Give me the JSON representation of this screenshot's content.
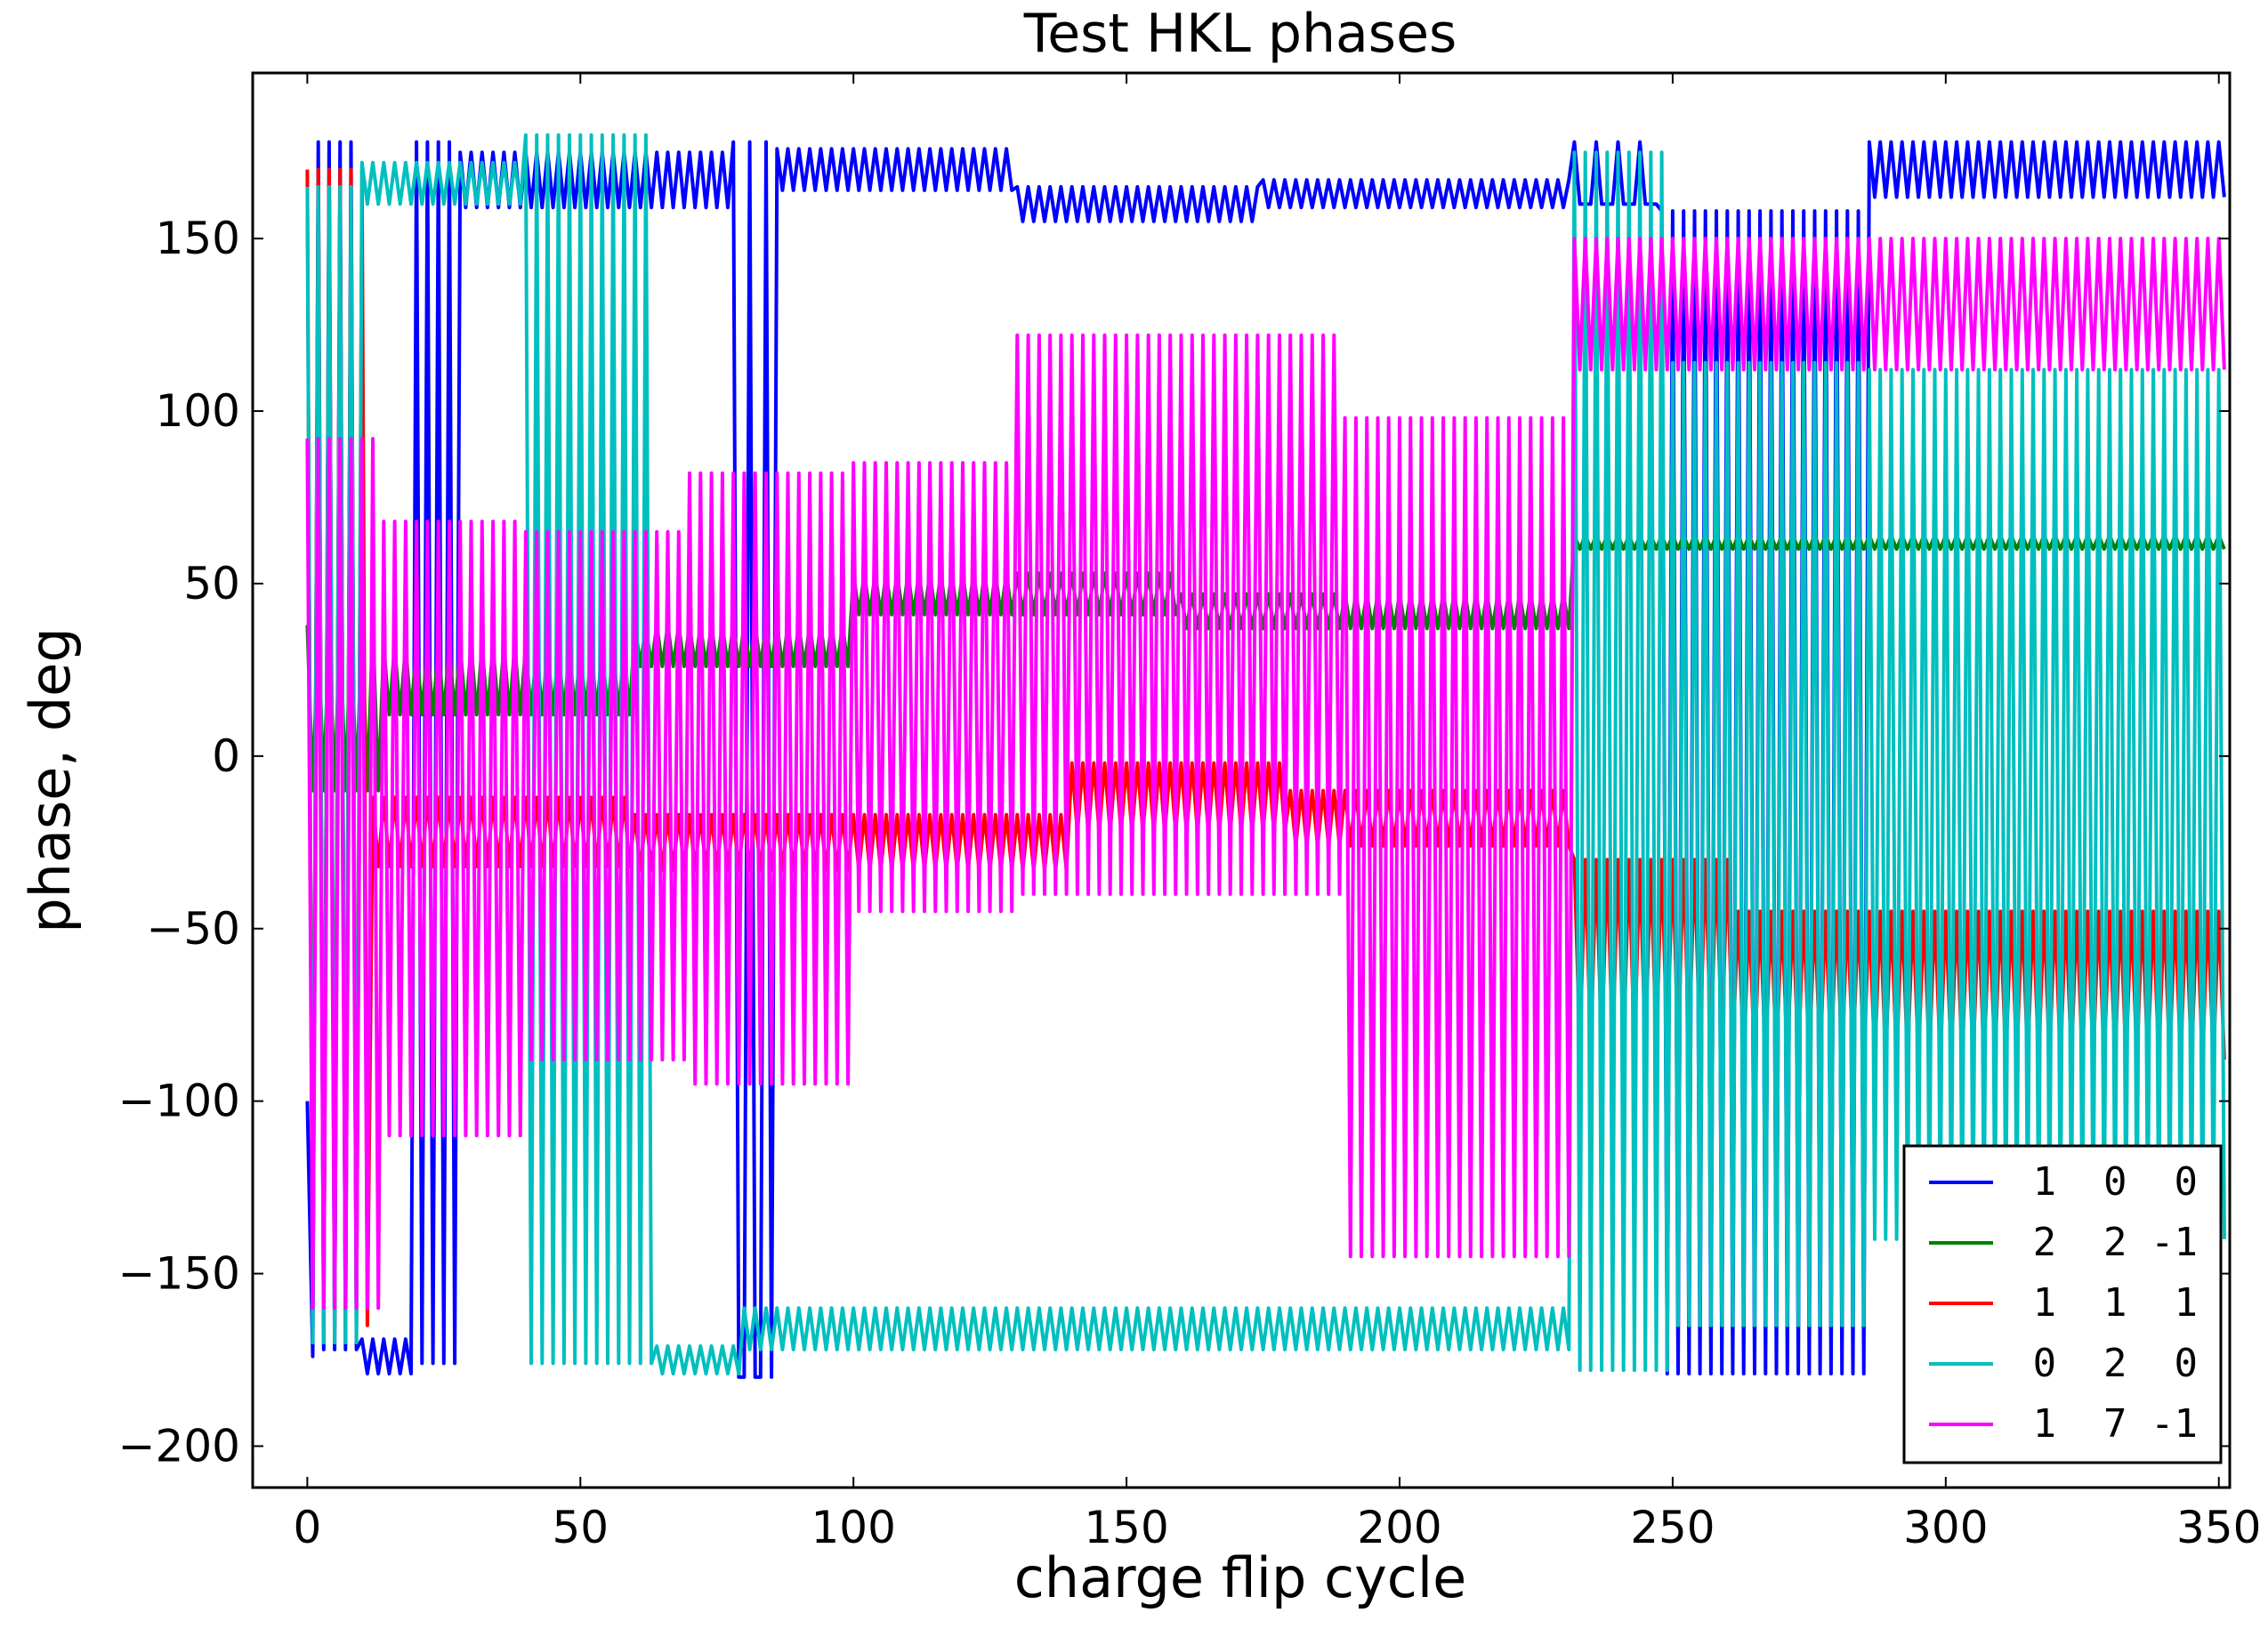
{
  "chart_data": {
    "type": "line",
    "title": "Test HKL phases",
    "xlabel": "charge flip cycle",
    "ylabel": "phase, deg",
    "xlim": [
      -10,
      352
    ],
    "ylim": [
      -212,
      198
    ],
    "xticks": [
      0,
      50,
      100,
      150,
      200,
      250,
      300,
      350
    ],
    "yticks": [
      150,
      100,
      50,
      0,
      -50,
      -100,
      -150,
      -200
    ],
    "xtick_labels": [
      "0",
      "50",
      "100",
      "150",
      "200",
      "250",
      "300",
      "350"
    ],
    "ytick_labels": [
      "150",
      "100",
      "50",
      "0",
      "−50",
      "−100",
      "−150",
      "−200"
    ],
    "legend_position": "lower-right",
    "num_cycles": 352,
    "series": [
      {
        "name": "1 0 0",
        "label": "1  0  0",
        "color": "#0000ff",
        "segments": [
          {
            "start": 0,
            "end": 2,
            "kind": "pulse",
            "hi": -100,
            "lo": -174,
            "period": 2
          },
          {
            "start": 2,
            "end": 10,
            "kind": "pulse",
            "hi": 178,
            "lo": -172,
            "period": 2
          },
          {
            "start": 10,
            "end": 20,
            "kind": "osc",
            "base": -174,
            "amp": 5,
            "period": 2
          },
          {
            "start": 20,
            "end": 28,
            "kind": "pulse",
            "hi": 178,
            "lo": -176,
            "period": 2
          },
          {
            "start": 28,
            "end": 78,
            "kind": "osc",
            "base": 167,
            "amp": 8,
            "period": 2
          },
          {
            "start": 78,
            "end": 86,
            "kind": "pulse",
            "hi": 178,
            "lo": -180,
            "period": 3
          },
          {
            "start": 86,
            "end": 130,
            "kind": "osc",
            "base": 170,
            "amp": 6,
            "period": 2
          },
          {
            "start": 130,
            "end": 175,
            "kind": "osc",
            "base": 160,
            "amp": 5,
            "period": 2
          },
          {
            "start": 175,
            "end": 232,
            "kind": "osc",
            "base": 163,
            "amp": 4,
            "period": 2
          },
          {
            "start": 232,
            "end": 248,
            "kind": "pulse",
            "hi": 178,
            "lo": 160,
            "period": 4
          },
          {
            "start": 248,
            "end": 286,
            "kind": "pulse",
            "hi": 158,
            "lo": -179,
            "period": 2
          },
          {
            "start": 286,
            "end": 352,
            "kind": "pulse",
            "hi": 178,
            "lo": 162,
            "period": 2
          }
        ]
      },
      {
        "name": "2 2 -1",
        "label": "2  2 -1",
        "color": "#008000",
        "segments": [
          {
            "start": 0,
            "end": 14,
            "kind": "pulse",
            "hi": 38,
            "lo": -10,
            "period": 2
          },
          {
            "start": 14,
            "end": 60,
            "kind": "osc",
            "base": 22,
            "amp": 10,
            "period": 2
          },
          {
            "start": 60,
            "end": 100,
            "kind": "osc",
            "base": 32,
            "amp": 6,
            "period": 2
          },
          {
            "start": 100,
            "end": 160,
            "kind": "osc",
            "base": 47,
            "amp": 6,
            "period": 2
          },
          {
            "start": 160,
            "end": 232,
            "kind": "osc",
            "base": 42,
            "amp": 5,
            "period": 2
          },
          {
            "start": 232,
            "end": 352,
            "kind": "osc",
            "base": 62,
            "amp": 2,
            "period": 2
          }
        ]
      },
      {
        "name": "1 1 1",
        "label": "1  1  1",
        "color": "#ff0000",
        "segments": [
          {
            "start": 0,
            "end": 12,
            "kind": "pulse",
            "hi": 170,
            "lo": -165,
            "period": 2
          },
          {
            "start": 12,
            "end": 60,
            "kind": "osc",
            "base": -22,
            "amp": 10,
            "period": 2
          },
          {
            "start": 60,
            "end": 140,
            "kind": "osc",
            "base": -25,
            "amp": 8,
            "period": 2
          },
          {
            "start": 140,
            "end": 180,
            "kind": "osc",
            "base": -12,
            "amp": 10,
            "period": 2
          },
          {
            "start": 180,
            "end": 232,
            "kind": "osc",
            "base": -18,
            "amp": 8,
            "period": 2
          },
          {
            "start": 232,
            "end": 262,
            "kind": "pulse",
            "hi": -30,
            "lo": -85,
            "period": 2
          },
          {
            "start": 262,
            "end": 352,
            "kind": "pulse",
            "hi": -45,
            "lo": -88,
            "period": 2
          }
        ]
      },
      {
        "name": "0 2 0",
        "label": "0  2  0",
        "color": "#00bfbf",
        "segments": [
          {
            "start": 0,
            "end": 10,
            "kind": "pulse",
            "hi": 165,
            "lo": -170,
            "period": 2
          },
          {
            "start": 10,
            "end": 40,
            "kind": "osc",
            "base": 166,
            "amp": 6,
            "period": 2
          },
          {
            "start": 40,
            "end": 64,
            "kind": "pulse",
            "hi": 180,
            "lo": -176,
            "period": 2
          },
          {
            "start": 64,
            "end": 80,
            "kind": "osc",
            "base": -175,
            "amp": 4,
            "period": 2
          },
          {
            "start": 80,
            "end": 232,
            "kind": "osc",
            "base": -166,
            "amp": 6,
            "period": 2
          },
          {
            "start": 232,
            "end": 250,
            "kind": "pulse",
            "hi": 175,
            "lo": -178,
            "period": 2
          },
          {
            "start": 250,
            "end": 286,
            "kind": "pulse",
            "hi": 114,
            "lo": -165,
            "period": 2
          },
          {
            "start": 286,
            "end": 352,
            "kind": "pulse",
            "hi": 112,
            "lo": -140,
            "period": 2
          }
        ]
      },
      {
        "name": "1 7 -1",
        "label": "1  7 -1",
        "color": "#ff00ff",
        "segments": [
          {
            "start": 0,
            "end": 14,
            "kind": "pulse",
            "hi": 92,
            "lo": -160,
            "period": 2
          },
          {
            "start": 14,
            "end": 40,
            "kind": "pulse",
            "hi": 68,
            "lo": -110,
            "period": 2
          },
          {
            "start": 40,
            "end": 70,
            "kind": "pulse",
            "hi": 65,
            "lo": -88,
            "period": 2
          },
          {
            "start": 70,
            "end": 100,
            "kind": "pulse",
            "hi": 82,
            "lo": -95,
            "period": 2
          },
          {
            "start": 100,
            "end": 130,
            "kind": "pulse",
            "hi": 85,
            "lo": -45,
            "period": 2
          },
          {
            "start": 130,
            "end": 190,
            "kind": "pulse",
            "hi": 122,
            "lo": -40,
            "period": 2
          },
          {
            "start": 190,
            "end": 232,
            "kind": "pulse",
            "hi": 98,
            "lo": -145,
            "period": 2
          },
          {
            "start": 232,
            "end": 352,
            "kind": "pulse",
            "hi": 150,
            "lo": 112,
            "period": 2
          }
        ]
      }
    ]
  }
}
